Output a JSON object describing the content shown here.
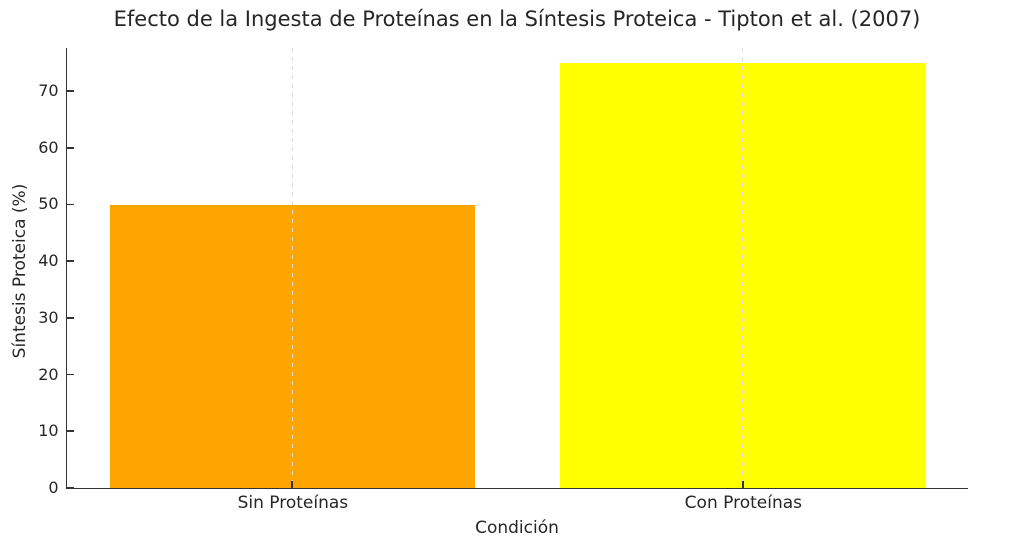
{
  "chart_data": {
    "type": "bar",
    "title": "Efecto de la Ingesta de Proteínas en la Síntesis Proteica - Tipton et al. (2007)",
    "xlabel": "Condición",
    "ylabel": "Síntesis Proteica (%)",
    "categories": [
      "Sin Proteínas",
      "Con Proteínas"
    ],
    "values": [
      50,
      75
    ],
    "bar_colors": [
      "#FFA500",
      "#FFFF00"
    ],
    "yticks": [
      0,
      10,
      20,
      30,
      40,
      50,
      60,
      70
    ],
    "ylim": [
      0,
      77.6
    ],
    "bar_width_fraction": 0.81,
    "grid": "vertical dashed gridlines at category centers, drawn over bars",
    "gridline_color": "#dcdcdc",
    "axis_color": "#333333",
    "text_color": "#262626",
    "background_color": "#ffffff",
    "legend": "none",
    "spines": "left and bottom only, ticks pointing inward"
  }
}
